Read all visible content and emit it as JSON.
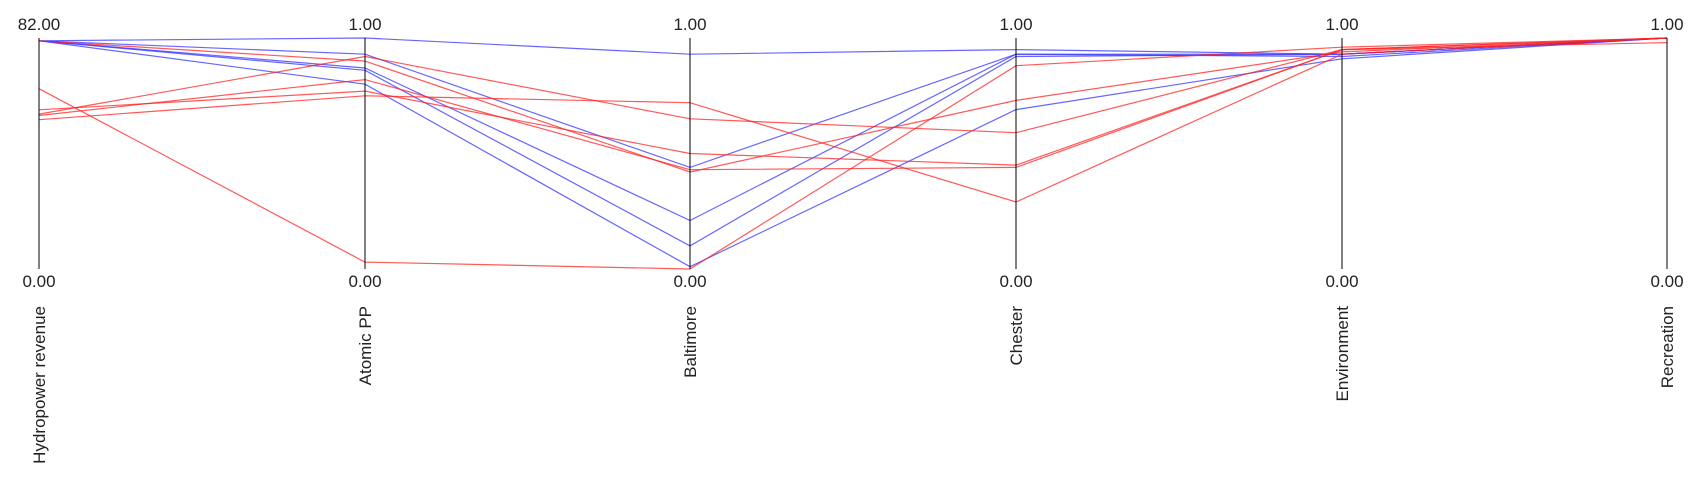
{
  "chart_data": {
    "type": "parallel-coordinates",
    "axes": [
      {
        "name": "Hydropower revenue",
        "max_label": "82.00",
        "min_label": "0.00",
        "range": [
          0,
          82
        ]
      },
      {
        "name": "Atomic PP",
        "max_label": "1.00",
        "min_label": "0.00",
        "range": [
          0,
          1
        ]
      },
      {
        "name": "Baltimore",
        "max_label": "1.00",
        "min_label": "0.00",
        "range": [
          0,
          1
        ]
      },
      {
        "name": "Chester",
        "max_label": "1.00",
        "min_label": "0.00",
        "range": [
          0,
          1
        ]
      },
      {
        "name": "Environment",
        "max_label": "1.00",
        "min_label": "0.00",
        "range": [
          0,
          1
        ]
      },
      {
        "name": "Recreation",
        "max_label": "1.00",
        "min_label": "0.00",
        "range": [
          0,
          1
        ]
      }
    ],
    "colors": {
      "blue": "#3333ff",
      "red": "#ff2222"
    },
    "series": [
      {
        "color": "blue",
        "values": [
          81.0,
          1.0,
          0.93,
          0.95,
          0.93,
          1.0
        ]
      },
      {
        "color": "blue",
        "values": [
          81.0,
          0.93,
          0.44,
          0.93,
          0.92,
          1.0
        ]
      },
      {
        "color": "blue",
        "values": [
          81.0,
          0.87,
          0.21,
          0.93,
          0.93,
          1.0
        ]
      },
      {
        "color": "blue",
        "values": [
          81.0,
          0.86,
          0.1,
          0.92,
          0.93,
          1.0
        ]
      },
      {
        "color": "blue",
        "values": [
          81.0,
          0.8,
          0.01,
          0.69,
          0.91,
          1.0
        ]
      },
      {
        "color": "red",
        "values": [
          56.5,
          0.77,
          0.5,
          0.45,
          0.95,
          0.98
        ]
      },
      {
        "color": "red",
        "values": [
          54.5,
          0.82,
          0.43,
          0.44,
          0.95,
          1.0
        ]
      },
      {
        "color": "red",
        "values": [
          55.0,
          0.92,
          0.65,
          0.59,
          0.95,
          1.0
        ]
      },
      {
        "color": "red",
        "values": [
          53.0,
          0.75,
          0.72,
          0.29,
          0.93,
          1.0
        ]
      },
      {
        "color": "red",
        "values": [
          64.0,
          0.03,
          0.0,
          0.88,
          0.96,
          1.0
        ]
      },
      {
        "color": "red",
        "values": [
          81.0,
          0.9,
          0.42,
          0.73,
          0.94,
          1.0
        ]
      }
    ]
  }
}
